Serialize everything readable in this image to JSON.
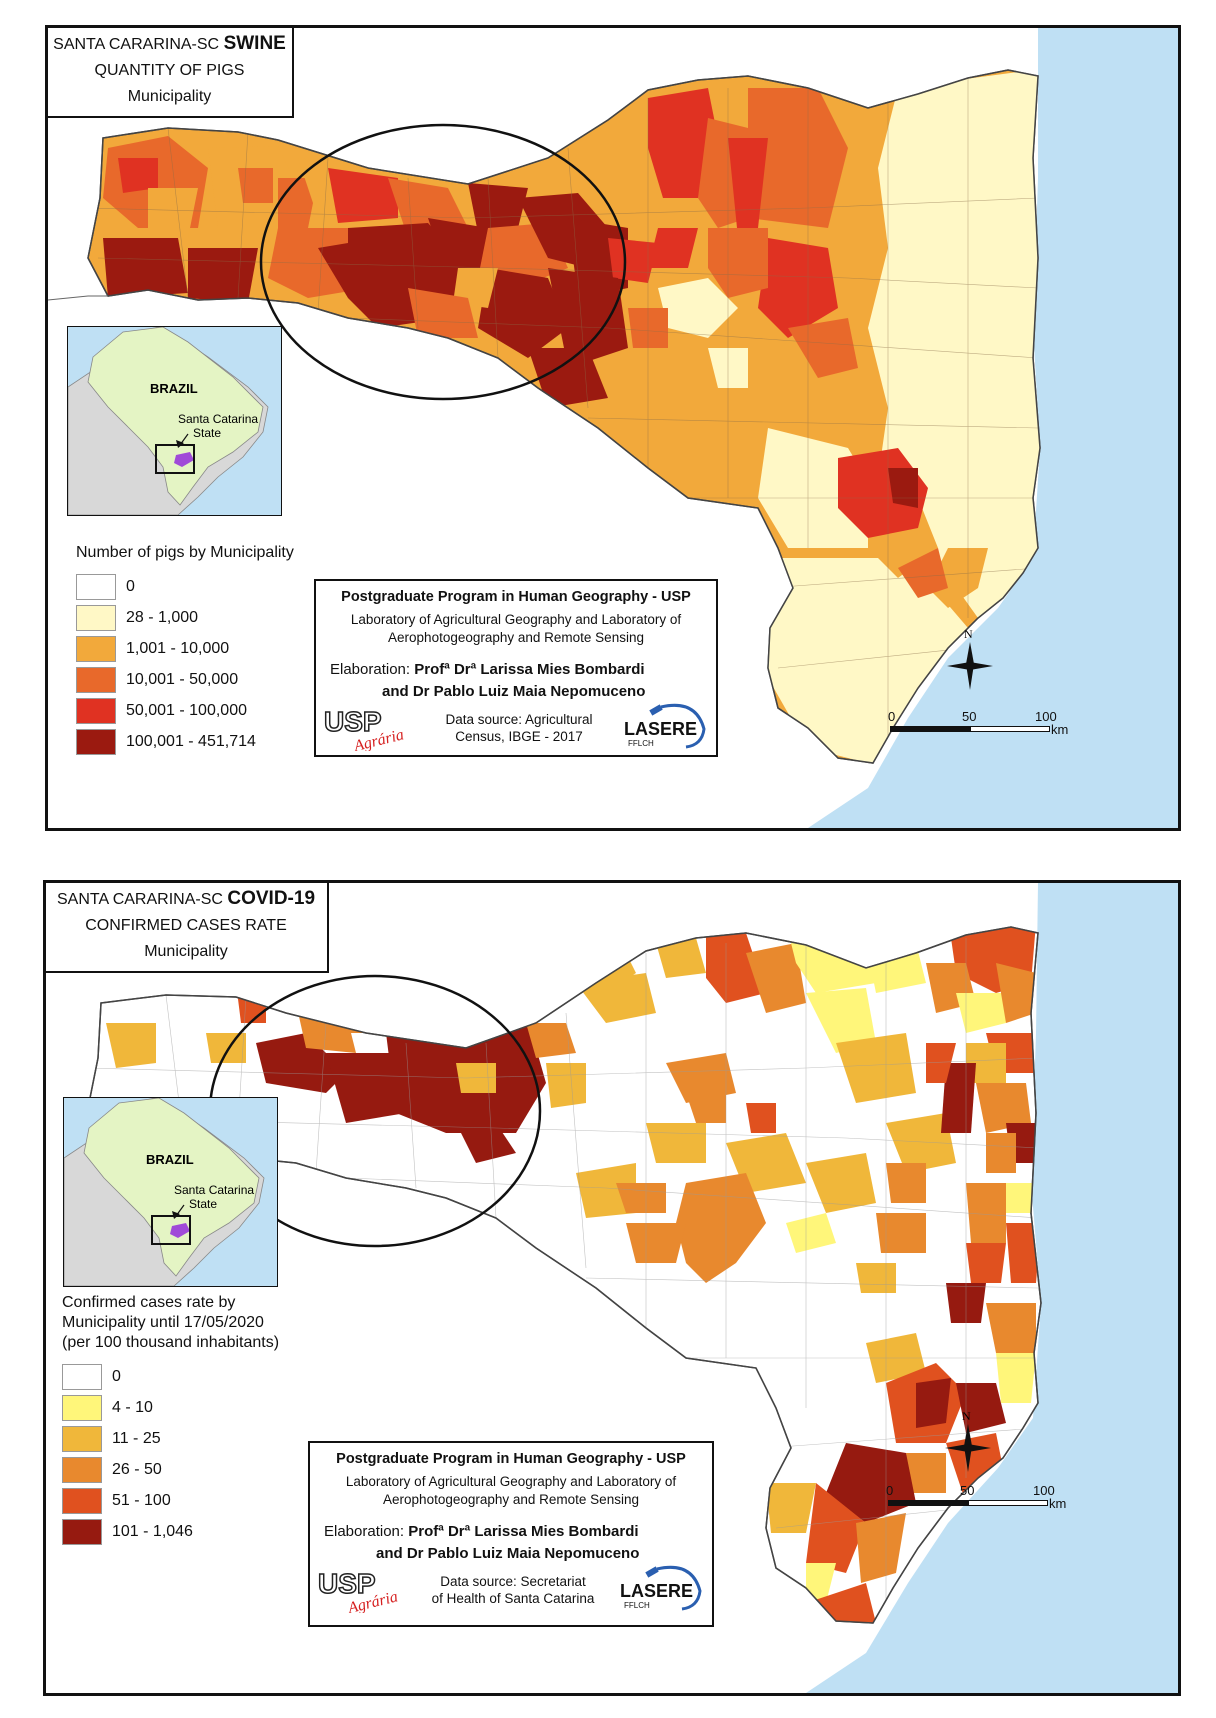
{
  "maps": [
    {
      "title": {
        "line1": "SANTA CARARINA-SC",
        "bold": "SWINE",
        "line2": "QUANTITY OF PIGS",
        "line3": "Municipality"
      },
      "inset": {
        "country": "BRAZIL",
        "state_line1": "Santa Catarina",
        "state_line2": "State"
      },
      "legend": {
        "title": "Number of pigs by Municipality",
        "classes": [
          {
            "label": "0",
            "color": "#ffffff"
          },
          {
            "label": "28 - 1,000",
            "color": "#fff8c6"
          },
          {
            "label": "1,001 - 10,000",
            "color": "#f2a93b"
          },
          {
            "label": "10,001 - 50,000",
            "color": "#e8692b"
          },
          {
            "label": "50,001 - 100,000",
            "color": "#e03222"
          },
          {
            "label": "100,001 - 451,714",
            "color": "#9b1a10"
          }
        ]
      },
      "credit": {
        "title": "Postgraduate Program in Human Geography - USP",
        "lab_line1": "Laboratory of Agricultural Geography and Laboratory of",
        "lab_line2": "Aerophotogeography and Remote Sensing",
        "elaboration_label": "Elaboration:",
        "author1": "Profª Drª Larissa Mies Bombardi",
        "author2": "and Dr Pablo Luiz Maia Nepomuceno",
        "source_line1": "Data source: Agricultural",
        "source_line2": "Census, IBGE - 2017",
        "logo_usp": "USP",
        "logo_usp_sub": "Agrária",
        "logo_lasere": "LASERE",
        "logo_lasere_sub": "FFLCH"
      },
      "north_label": "N",
      "scale": {
        "t0": "0",
        "t1": "50",
        "t2": "100",
        "unit": "km"
      }
    },
    {
      "title": {
        "line1": "SANTA CARARINA-SC",
        "bold": "COVID-19",
        "line2": "CONFIRMED CASES RATE",
        "line3": "Municipality"
      },
      "inset": {
        "country": "BRAZIL",
        "state_line1": "Santa Catarina",
        "state_line2": "State"
      },
      "legend": {
        "title_line1": "Confirmed  cases rate  by",
        "title_line2": "Municipality until 17/05/2020",
        "title_line3": "(per 100 thousand inhabitants)",
        "classes": [
          {
            "label": "0",
            "color": "#ffffff"
          },
          {
            "label": "4 - 10",
            "color": "#fff67a"
          },
          {
            "label": "11 - 25",
            "color": "#f0b73a"
          },
          {
            "label": "26 - 50",
            "color": "#e8892e"
          },
          {
            "label": "51 - 100",
            "color": "#e0511f"
          },
          {
            "label": "101 - 1,046",
            "color": "#961a10"
          }
        ]
      },
      "credit": {
        "title": "Postgraduate Program in Human Geography - USP",
        "lab_line1": "Laboratory of Agricultural Geography and Laboratory of",
        "lab_line2": "Aerophotogeography and Remote Sensing",
        "elaboration_label": "Elaboration:",
        "author1": "Profª Drª Larissa Mies Bombardi",
        "author2": "and Dr Pablo Luiz Maia Nepomuceno",
        "source_line1": "Data source: Secretariat",
        "source_line2": "of Health of Santa Catarina",
        "logo_usp": "USP",
        "logo_usp_sub": "Agrária",
        "logo_lasere": "LASERE",
        "logo_lasere_sub": "FFLCH"
      },
      "north_label": "N",
      "scale": {
        "t0": "0",
        "t1": "50",
        "t2": "100",
        "unit": "km"
      }
    }
  ],
  "colors": {
    "ocean": "#bfe0f4",
    "state_line": "#777777",
    "inset_land": "#e4f4c4",
    "highlight": "#a04ad8"
  }
}
